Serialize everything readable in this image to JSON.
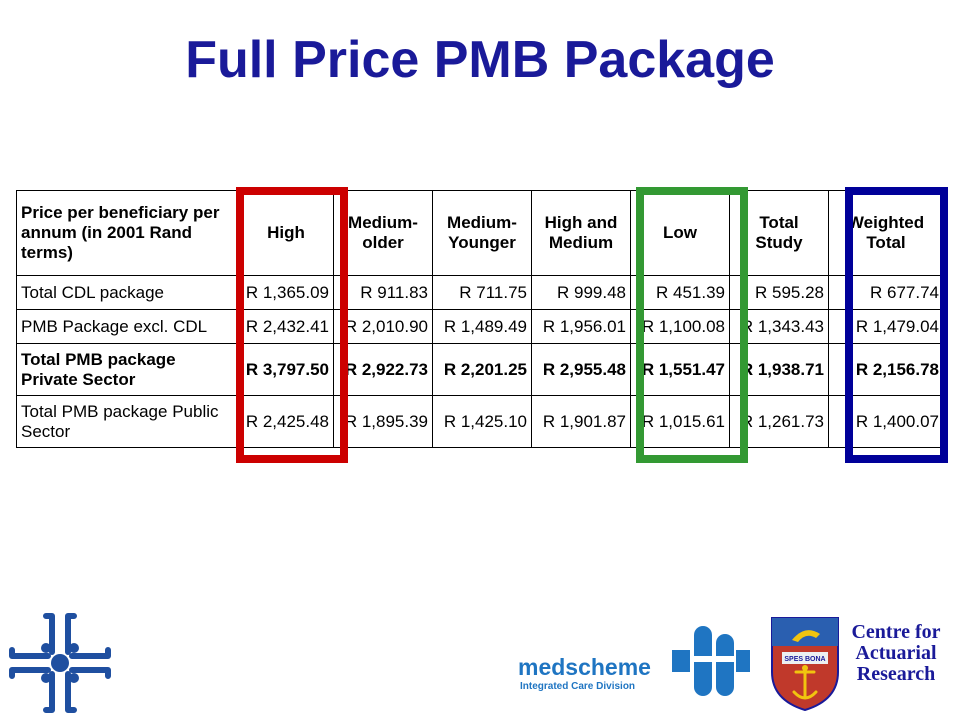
{
  "title": "Full Price PMB Package",
  "table": {
    "headers": [
      "Price per beneficiary per annum (in 2001 Rand terms)",
      "High",
      "Medium-older",
      "Medium-Younger",
      "High and Medium",
      "Low",
      "Total Study",
      "Weighted Total"
    ],
    "rows": [
      {
        "label": "Total CDL package",
        "bold": false,
        "values": [
          "R 1,365.09",
          "R 911.83",
          "R 711.75",
          "R 999.48",
          "R 451.39",
          "R 595.28",
          "R 677.74"
        ]
      },
      {
        "label": "PMB Package excl. CDL",
        "bold": false,
        "values": [
          "R 2,432.41",
          "R 2,010.90",
          "R 1,489.49",
          "R 1,956.01",
          "R 1,100.08",
          "R 1,343.43",
          "R 1,479.04"
        ]
      },
      {
        "label": "Total PMB package Private Sector",
        "bold": true,
        "values": [
          "R 3,797.50",
          "R 2,922.73",
          "R 2,201.25",
          "R 2,955.48",
          "R 1,551.47",
          "R 1,938.71",
          "R 2,156.78"
        ]
      },
      {
        "label": "Total PMB package Public Sector",
        "bold": false,
        "values": [
          "R 2,425.48",
          "R 1,895.39",
          "R 1,425.10",
          "R 1,901.87",
          "R 1,015.61",
          "R 1,261.73",
          "R 1,400.07"
        ]
      }
    ]
  },
  "highlights": {
    "high": "#cc0000",
    "low": "#339933",
    "weighted_total": "#000099"
  },
  "logos": {
    "left_logo": "cross-logo",
    "medscheme_name": "medscheme",
    "medscheme_division": "Integrated Care Division",
    "crest_motto": "SPES BONA",
    "car_text": "Centre for Actuarial Research"
  }
}
